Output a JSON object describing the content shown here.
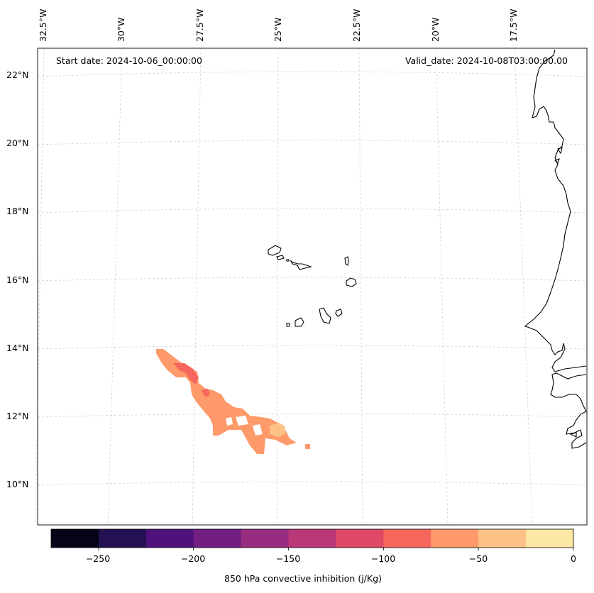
{
  "header": {
    "start_date": "Start date: 2024-10-06_00:00:00",
    "valid_date": "Valid_date: 2024-10-08T03:00:00.00"
  },
  "lon_labels": [
    "32.5°W",
    "30°W",
    "27.5°W",
    "25°W",
    "22.5°W",
    "20°W",
    "17.5°W"
  ],
  "lat_labels": [
    "22°N",
    "20°N",
    "18°N",
    "16°N",
    "14°N",
    "12°N",
    "10°N"
  ],
  "colorbar": {
    "label": "850 hPa convective inhibition (j/Kg)",
    "ticks": [
      "−250",
      "−200",
      "−150",
      "−100",
      "−50",
      "0"
    ],
    "bins": [
      -275,
      -250,
      -225,
      -200,
      -175,
      -150,
      -125,
      -100,
      -75,
      -50,
      -25,
      0
    ],
    "colors": [
      "#050417",
      "#231151",
      "#4f127b",
      "#731f81",
      "#972c80",
      "#bb3878",
      "#de4968",
      "#f5665c",
      "#fe9a6a",
      "#fec288",
      "#fde7a4"
    ]
  },
  "colors": {
    "coastline": "#000000",
    "grid": "#cccccc",
    "cin_main": "#fe9a6a",
    "cin_strong": "#f5665c",
    "cin_weak": "#fec288"
  }
}
